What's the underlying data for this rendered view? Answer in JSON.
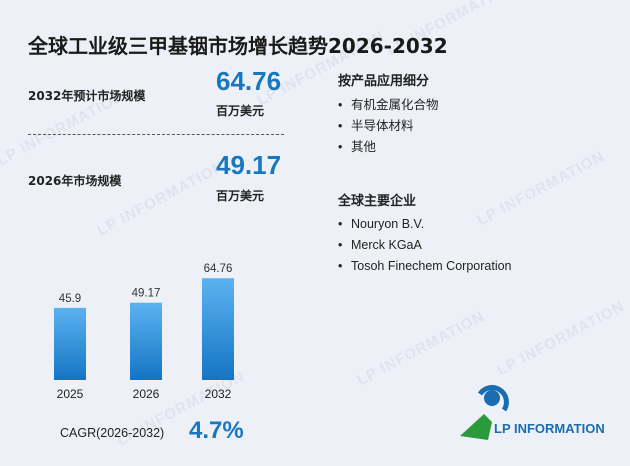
{
  "title": "全球工业级三甲基铟市场增长趋势2026-2032",
  "metrics": [
    {
      "label": "2032年预计市场规模",
      "value": "64.76",
      "unit": "百万美元"
    },
    {
      "label": "2026年市场规模",
      "value": "49.17",
      "unit": "百万美元"
    }
  ],
  "segments": {
    "title": "按产品应用细分",
    "items": [
      "有机金属化合物",
      "半导体材料",
      "其他"
    ]
  },
  "companies": {
    "title": "全球主要企业",
    "items": [
      "Nouryon B.V.",
      "Merck KGaA",
      "Tosoh Finechem Corporation"
    ]
  },
  "chart_data": {
    "type": "bar",
    "categories": [
      "2025",
      "2026",
      "2032"
    ],
    "values": [
      45.9,
      49.17,
      64.76
    ],
    "value_labels": [
      "45.9",
      "49.17",
      "64.76"
    ],
    "ylim": [
      0,
      70
    ],
    "grid": false,
    "bar_color": "#1e88d6"
  },
  "cagr": {
    "label": "CAGR(2026-2032)",
    "value": "4.7%"
  },
  "logo": {
    "text": "LP INFORMATION"
  },
  "watermark": "LP INFORMATION",
  "colors": {
    "accent": "#1877c2",
    "background": "#edf1f7",
    "logo_green": "#2a9a3c"
  }
}
